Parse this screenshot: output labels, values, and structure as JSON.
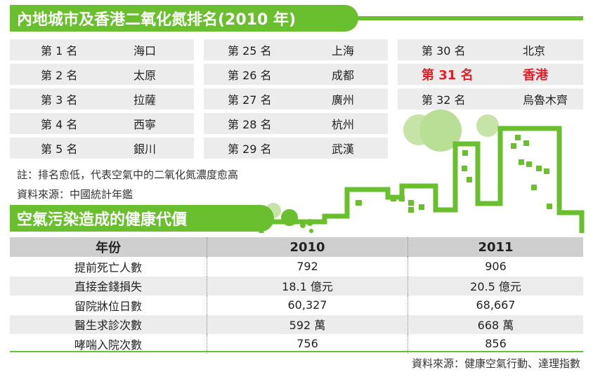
{
  "ranking": {
    "title": "內地城市及香港二氧化氮排名(2010 年)",
    "columns": [
      [
        {
          "rank": "第 1 名",
          "city": "海口"
        },
        {
          "rank": "第 2 名",
          "city": "太原"
        },
        {
          "rank": "第 3 名",
          "city": "拉薩"
        },
        {
          "rank": "第 4 名",
          "city": "西寧"
        },
        {
          "rank": "第 5 名",
          "city": "銀川"
        }
      ],
      [
        {
          "rank": "第 25 名",
          "city": "上海"
        },
        {
          "rank": "第 26 名",
          "city": "成都"
        },
        {
          "rank": "第 27 名",
          "city": "廣州"
        },
        {
          "rank": "第 28 名",
          "city": "杭州"
        },
        {
          "rank": "第 29 名",
          "city": "武漢"
        }
      ],
      [
        {
          "rank": "第 30 名",
          "city": "北京"
        },
        {
          "rank": "第 31 名",
          "city": "香港",
          "highlight": true
        },
        {
          "rank": "第 32 名",
          "city": "烏魯木齊"
        }
      ]
    ],
    "note": "註：排名愈低，代表空氣中的二氧化氮濃度愈高",
    "source": "資料來源：中國統計年鑑"
  },
  "health": {
    "title": "空氣污染造成的健康代價",
    "headers": [
      "年份",
      "2010",
      "2011"
    ],
    "rows": [
      [
        "提前死亡人數",
        "792",
        "906"
      ],
      [
        "直接金錢損失",
        "18.1 億元",
        "20.5 億元"
      ],
      [
        "留院牀位日數",
        "60,327",
        "68,667"
      ],
      [
        "醫生求診次數",
        "592 萬",
        "668 萬"
      ],
      [
        "哮喘入院次數",
        "756",
        "856"
      ]
    ],
    "source": "資料來源：健康空氣行動、達理指數"
  },
  "colors": {
    "accent_green": "#6abf2e",
    "highlight_red": "#e41e26",
    "row_grey": "#ececec",
    "header_grey": "#cfcfcf"
  }
}
